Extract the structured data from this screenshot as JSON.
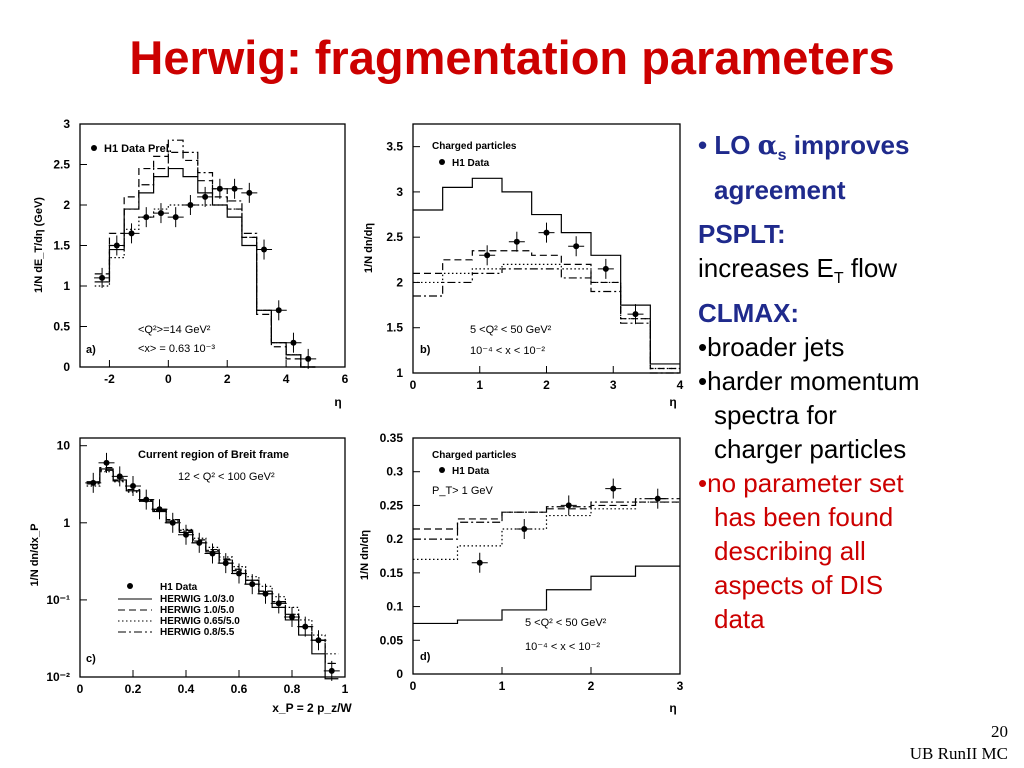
{
  "slide": {
    "title": "Herwig: fragmentation parameters",
    "number": "20",
    "footer": "UB RunII MC",
    "bullets": {
      "b1_pre": "• LO ",
      "b1_alpha": "α",
      "b1_sub": "s",
      "b1_post": " improves",
      "b1_cont": "agreement",
      "pspl": "PSPLT:",
      "et_pre": "increases E",
      "et_sub": "T",
      "et_post": " flow",
      "clmax": "CLMAX:",
      "b2": "•broader jets",
      "b3a": "•harder momentum",
      "b3b": "spectra for",
      "b3c": "charger particles",
      "b4a": "•no parameter set",
      "b4b": "has been found",
      "b4c": "describing all",
      "b4d": "aspects of DIS",
      "b4e": "data"
    }
  },
  "chart_data": [
    {
      "type": "line",
      "panel": "a)",
      "xlim": [
        -3,
        6
      ],
      "ylim": [
        0,
        3
      ],
      "xticks": [
        "-2",
        "0",
        "2",
        "4",
        "6"
      ],
      "yticks": [
        "0",
        "0.5",
        "1",
        "1.5",
        "2",
        "2.5",
        "3"
      ],
      "xlabel": "η",
      "ylabel": "1/N dE_T/dη (GeV)",
      "legend": [
        "H1 Data Prel."
      ],
      "annotations": [
        "<Q²>=14 GeV²",
        "<x> = 0.63 10⁻³",
        "a)"
      ],
      "data": {
        "x": [
          -2.25,
          -1.75,
          -1.25,
          -0.75,
          -0.25,
          0.25,
          0.75,
          1.25,
          1.75,
          2.25,
          2.75,
          3.25,
          3.75,
          4.25,
          4.75
        ],
        "y": [
          1.1,
          1.5,
          1.65,
          1.85,
          1.9,
          1.85,
          2.0,
          2.1,
          2.2,
          2.2,
          2.15,
          1.45,
          0.7,
          0.3,
          0.1
        ]
      },
      "series": [
        {
          "style": "solid",
          "y": [
            1.05,
            1.45,
            1.95,
            2.15,
            2.35,
            2.45,
            2.35,
            2.15,
            2.0,
            1.85,
            1.5,
            0.7,
            0.3,
            0.15,
            0.0
          ]
        },
        {
          "style": "dashed",
          "y": [
            1.15,
            1.65,
            2.1,
            2.45,
            2.6,
            2.65,
            2.55,
            2.3,
            2.1,
            1.95,
            1.6,
            0.65,
            0.25,
            0.1,
            0.0
          ]
        },
        {
          "style": "dotted",
          "y": [
            1.0,
            1.35,
            1.7,
            1.85,
            1.95,
            2.0,
            2.0,
            2.0,
            2.0,
            1.95,
            1.6,
            0.7,
            0.3,
            0.15,
            0.0
          ]
        },
        {
          "style": "dashdot",
          "y": [
            1.05,
            1.5,
            1.95,
            2.25,
            2.45,
            2.8,
            2.65,
            2.4,
            2.2,
            2.05,
            1.65,
            0.7,
            0.3,
            0.15,
            0.0
          ]
        }
      ]
    },
    {
      "type": "line",
      "panel": "b)",
      "xlim": [
        0,
        4.5
      ],
      "ylim": [
        1,
        3.75
      ],
      "xticks": [
        "0",
        "1",
        "2",
        "3",
        "4"
      ],
      "yticks": [
        "1",
        "1.5",
        "2",
        "2.5",
        "3",
        "3.5"
      ],
      "xlabel": "η",
      "ylabel": "1/N dn/dη",
      "legend": [
        "Charged particles",
        "H1 Data"
      ],
      "annotations": [
        "5 <Q² < 50 GeV²",
        "10⁻⁴ < x < 10⁻²",
        "b)"
      ],
      "data": {
        "x": [
          1.25,
          1.75,
          2.25,
          2.75,
          3.25,
          3.75
        ],
        "y": [
          2.3,
          2.45,
          2.55,
          2.4,
          2.15,
          1.65
        ]
      },
      "series": [
        {
          "style": "solid",
          "y": [
            2.8,
            3.05,
            3.15,
            3.0,
            2.75,
            2.55,
            2.3,
            1.75,
            1.1
          ],
          "x0": 0,
          "dx": 0.5
        },
        {
          "style": "dashed",
          "y": [
            2.1,
            2.25,
            2.35,
            2.35,
            2.3,
            2.2,
            2.0,
            1.6,
            1.05
          ],
          "x0": 0,
          "dx": 0.5
        },
        {
          "style": "dotted",
          "y": [
            2.0,
            2.1,
            2.15,
            2.2,
            2.2,
            2.15,
            2.0,
            1.6,
            1.05
          ],
          "x0": 0,
          "dx": 0.5
        },
        {
          "style": "dashdot",
          "y": [
            1.85,
            2.0,
            2.1,
            2.15,
            2.15,
            2.05,
            1.9,
            1.55,
            1.0
          ],
          "x0": 0,
          "dx": 0.5
        }
      ]
    },
    {
      "type": "line",
      "panel": "c)",
      "xlim": [
        0,
        1
      ],
      "ylim": [
        -2,
        1.1
      ],
      "yscale": "log",
      "xticks": [
        "0",
        "0.2",
        "0.4",
        "0.6",
        "0.8",
        "1"
      ],
      "yticks": [
        "10",
        "1",
        "10⁻¹",
        "10⁻²"
      ],
      "xlabel": "x_P = 2 p_z/W",
      "ylabel": "1/N dn/dx_P",
      "legend": [
        "H1 Data",
        "HERWIG 1.0/3.0",
        "HERWIG 1.0/5.0",
        "HERWIG 0.65/5.0",
        "HERWIG 0.8/5.5"
      ],
      "annotations": [
        "Current region of Breit frame",
        "12 < Q² < 100 GeV²",
        "c)"
      ],
      "data": {
        "x": [
          0.05,
          0.1,
          0.15,
          0.2,
          0.25,
          0.3,
          0.35,
          0.4,
          0.45,
          0.5,
          0.55,
          0.6,
          0.65,
          0.7,
          0.75,
          0.8,
          0.85,
          0.9,
          0.95
        ],
        "y": [
          3.3,
          6.0,
          4.0,
          3.0,
          2.0,
          1.5,
          1.0,
          0.7,
          0.55,
          0.4,
          0.3,
          0.22,
          0.16,
          0.12,
          0.09,
          0.06,
          0.045,
          0.03,
          0.012
        ]
      },
      "series": [
        {
          "style": "solid",
          "y": [
            3.4,
            5.0,
            3.6,
            2.6,
            1.9,
            1.4,
            1.0,
            0.75,
            0.55,
            0.42,
            0.3,
            0.22,
            0.16,
            0.12,
            0.08,
            0.055,
            0.035,
            0.02,
            0.009
          ]
        },
        {
          "style": "dashed",
          "y": [
            3.4,
            5.2,
            3.8,
            2.7,
            2.0,
            1.5,
            1.1,
            0.8,
            0.6,
            0.45,
            0.34,
            0.25,
            0.18,
            0.13,
            0.095,
            0.065,
            0.045,
            0.03,
            0.015
          ]
        },
        {
          "style": "dotted",
          "y": [
            3.0,
            4.6,
            3.4,
            2.5,
            1.9,
            1.45,
            1.1,
            0.82,
            0.63,
            0.48,
            0.36,
            0.27,
            0.2,
            0.15,
            0.11,
            0.08,
            0.055,
            0.035,
            0.02
          ]
        },
        {
          "style": "dashdot",
          "y": [
            3.2,
            4.8,
            3.5,
            2.6,
            1.95,
            1.45,
            1.05,
            0.78,
            0.58,
            0.44,
            0.33,
            0.24,
            0.18,
            0.13,
            0.095,
            0.065,
            0.045,
            0.03,
            0.015
          ]
        }
      ]
    },
    {
      "type": "line",
      "panel": "d)",
      "xlim": [
        0,
        3
      ],
      "ylim": [
        0,
        0.35
      ],
      "xticks": [
        "0",
        "1",
        "2",
        "3"
      ],
      "yticks": [
        "0",
        "0.05",
        "0.1",
        "0.15",
        "0.2",
        "0.25",
        "0.3",
        "0.35"
      ],
      "xlabel": "η",
      "ylabel": "1/N dn/dη",
      "legend": [
        "Charged particles",
        "H1 Data"
      ],
      "annotations": [
        "P_T> 1 GeV",
        "5 <Q² < 50 GeV²",
        "10⁻⁴ < x < 10⁻²",
        "d)"
      ],
      "data": {
        "x": [
          0.75,
          1.25,
          1.75,
          2.25,
          2.75
        ],
        "y": [
          0.165,
          0.215,
          0.25,
          0.275,
          0.26
        ]
      },
      "series": [
        {
          "style": "solid",
          "y": [
            0.075,
            0.08,
            0.095,
            0.125,
            0.145,
            0.16
          ],
          "x0": 0,
          "dx": 0.5
        },
        {
          "style": "dashed",
          "y": [
            0.215,
            0.23,
            0.24,
            0.245,
            0.25,
            0.255
          ],
          "x0": 0,
          "dx": 0.5
        },
        {
          "style": "dotted",
          "y": [
            0.17,
            0.19,
            0.215,
            0.235,
            0.245,
            0.255
          ],
          "x0": 0,
          "dx": 0.5
        },
        {
          "style": "dashdot",
          "y": [
            0.2,
            0.225,
            0.24,
            0.248,
            0.255,
            0.26
          ],
          "x0": 0,
          "dx": 0.5
        }
      ]
    }
  ]
}
